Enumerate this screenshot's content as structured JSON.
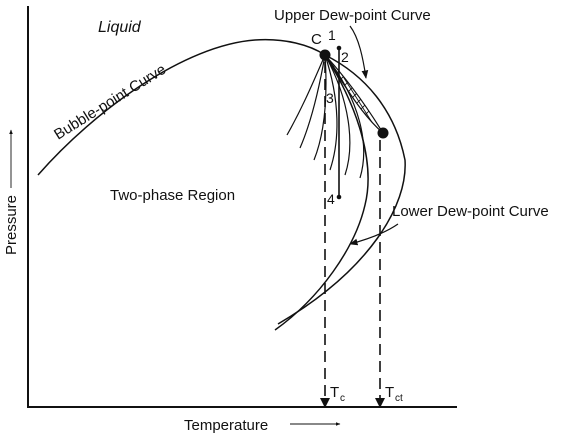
{
  "diagram": {
    "labels": {
      "liquid": "Liquid",
      "bubble_point_curve": "Bubble-point Curve",
      "upper_dew_point_curve": "Upper Dew-point Curve",
      "lower_dew_point_curve": "Lower Dew-point Curve",
      "two_phase_region": "Two-phase Region",
      "critical_point": "C",
      "point_1": "1",
      "point_2": "2",
      "point_3": "3",
      "point_4": "4",
      "tc_main": "T",
      "tc_sub": "c",
      "tct_main": "T",
      "tct_sub": "ct"
    },
    "axes": {
      "x_label": "Temperature",
      "y_label": "Pressure",
      "x_arrow": "⟶",
      "y_arrow": "⟶"
    }
  }
}
